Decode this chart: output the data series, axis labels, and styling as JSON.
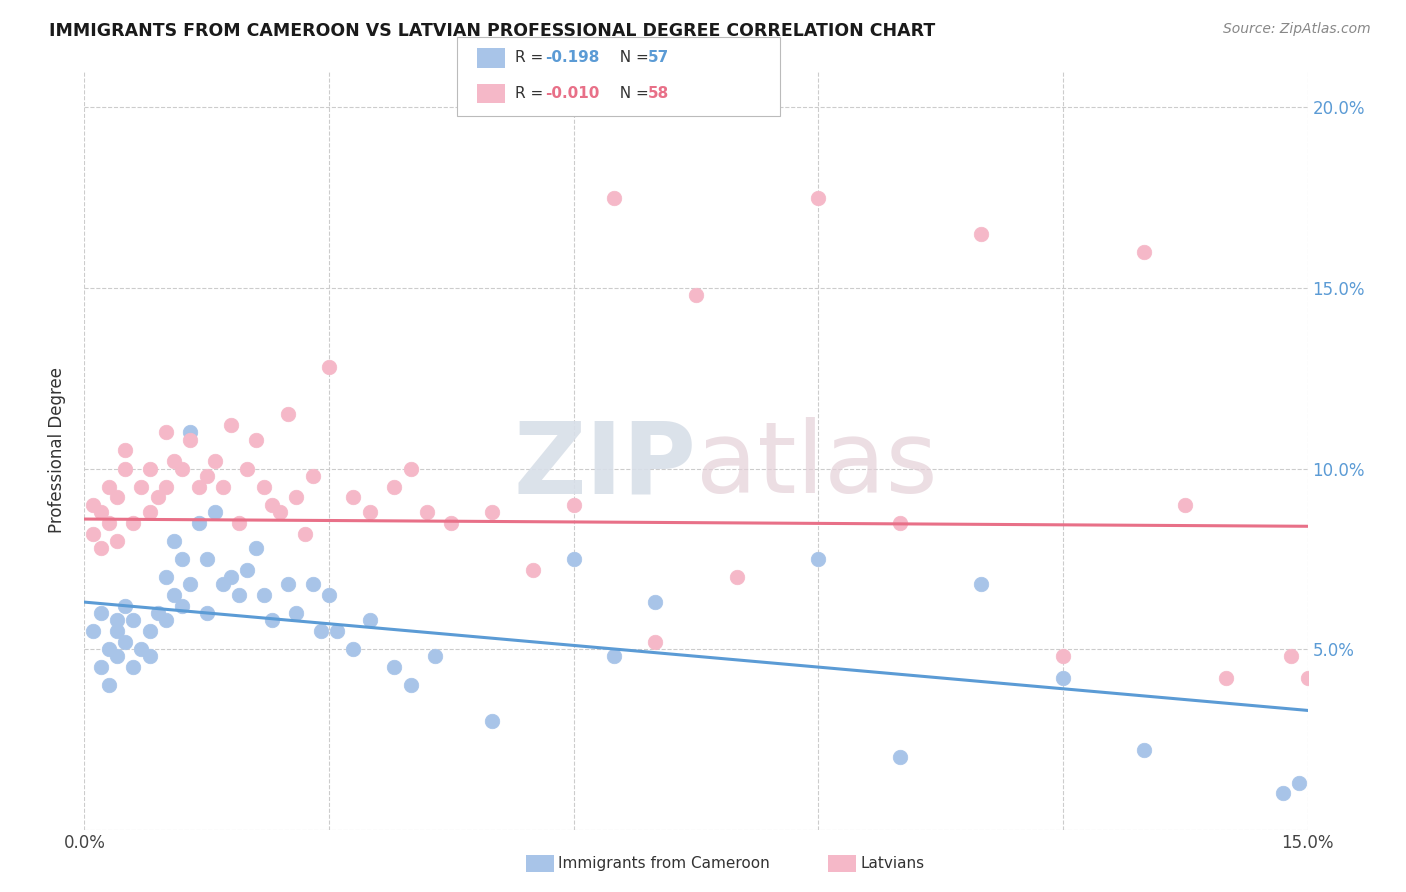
{
  "title": "IMMIGRANTS FROM CAMEROON VS LATVIAN PROFESSIONAL DEGREE CORRELATION CHART",
  "source": "Source: ZipAtlas.com",
  "ylabel": "Professional Degree",
  "xlim": [
    0.0,
    0.15
  ],
  "ylim": [
    0.0,
    0.21
  ],
  "watermark": "ZIPatlas",
  "blue_color": "#a8c4e8",
  "pink_color": "#f5b8c8",
  "blue_line_color": "#5b9bd5",
  "pink_line_color": "#e87088",
  "blue_line_y0": 0.063,
  "blue_line_y1": 0.033,
  "pink_line_y0": 0.086,
  "pink_line_y1": 0.084,
  "blue_x": [
    0.001,
    0.002,
    0.002,
    0.003,
    0.003,
    0.004,
    0.004,
    0.004,
    0.005,
    0.005,
    0.006,
    0.006,
    0.007,
    0.008,
    0.008,
    0.009,
    0.01,
    0.01,
    0.011,
    0.011,
    0.012,
    0.012,
    0.013,
    0.013,
    0.014,
    0.015,
    0.015,
    0.016,
    0.017,
    0.018,
    0.019,
    0.02,
    0.021,
    0.022,
    0.023,
    0.025,
    0.026,
    0.028,
    0.029,
    0.03,
    0.031,
    0.033,
    0.035,
    0.038,
    0.04,
    0.043,
    0.05,
    0.06,
    0.065,
    0.07,
    0.09,
    0.1,
    0.11,
    0.12,
    0.13,
    0.147,
    0.149
  ],
  "blue_y": [
    0.055,
    0.045,
    0.06,
    0.05,
    0.04,
    0.055,
    0.048,
    0.058,
    0.052,
    0.062,
    0.045,
    0.058,
    0.05,
    0.055,
    0.048,
    0.06,
    0.058,
    0.07,
    0.065,
    0.08,
    0.062,
    0.075,
    0.068,
    0.11,
    0.085,
    0.075,
    0.06,
    0.088,
    0.068,
    0.07,
    0.065,
    0.072,
    0.078,
    0.065,
    0.058,
    0.068,
    0.06,
    0.068,
    0.055,
    0.065,
    0.055,
    0.05,
    0.058,
    0.045,
    0.04,
    0.048,
    0.03,
    0.075,
    0.048,
    0.063,
    0.075,
    0.02,
    0.068,
    0.042,
    0.022,
    0.01,
    0.013
  ],
  "pink_x": [
    0.001,
    0.001,
    0.002,
    0.002,
    0.003,
    0.003,
    0.004,
    0.004,
    0.005,
    0.005,
    0.006,
    0.007,
    0.008,
    0.008,
    0.009,
    0.01,
    0.01,
    0.011,
    0.012,
    0.013,
    0.014,
    0.015,
    0.016,
    0.017,
    0.018,
    0.019,
    0.02,
    0.021,
    0.022,
    0.023,
    0.024,
    0.025,
    0.026,
    0.027,
    0.028,
    0.03,
    0.033,
    0.035,
    0.038,
    0.04,
    0.042,
    0.045,
    0.05,
    0.055,
    0.06,
    0.065,
    0.07,
    0.075,
    0.08,
    0.09,
    0.1,
    0.11,
    0.12,
    0.13,
    0.135,
    0.14,
    0.148,
    0.15
  ],
  "pink_y": [
    0.082,
    0.09,
    0.078,
    0.088,
    0.085,
    0.095,
    0.08,
    0.092,
    0.1,
    0.105,
    0.085,
    0.095,
    0.088,
    0.1,
    0.092,
    0.095,
    0.11,
    0.102,
    0.1,
    0.108,
    0.095,
    0.098,
    0.102,
    0.095,
    0.112,
    0.085,
    0.1,
    0.108,
    0.095,
    0.09,
    0.088,
    0.115,
    0.092,
    0.082,
    0.098,
    0.128,
    0.092,
    0.088,
    0.095,
    0.1,
    0.088,
    0.085,
    0.088,
    0.072,
    0.09,
    0.175,
    0.052,
    0.148,
    0.07,
    0.175,
    0.085,
    0.165,
    0.048,
    0.16,
    0.09,
    0.042,
    0.048,
    0.042
  ]
}
